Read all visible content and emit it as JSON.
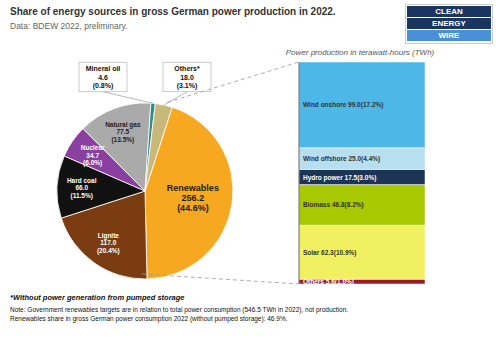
{
  "chart_data": [
    {
      "type": "pie",
      "title": "Share of energy sources in gross German power production in 2022.",
      "subtitle": "Data: BDEW 2022, preliminary.",
      "categories": [
        "Renewables",
        "Lignite",
        "Hard coal",
        "Nuclear",
        "Natural gas",
        "Mineral oil",
        "Others*"
      ],
      "values": [
        256.2,
        117.0,
        66.0,
        34.7,
        77.5,
        4.6,
        18.0
      ],
      "value_labels": [
        "256.2\n(44.6%)",
        "117.0\n(20.4%)",
        "66.0\n(11.5%)",
        "34.7\n(6.0%)",
        "77.5\n(13.5%)",
        "4.6\n(0.8%)",
        "18.0\n(3.1%)"
      ],
      "colors": [
        "#f5a820",
        "#7a3c10",
        "#111111",
        "#8b3fa0",
        "#aaaaaa",
        "#2e8b8b",
        "#c8b97a"
      ],
      "data_labels": true,
      "annotations": [
        "*Without power generation from pumped storage",
        "Note: Government renewables targets are in relation to total power consumption (546.5 TWh in 2022), not production.\nRenewables share in gross German power consumption 2022 (without pumped storage): 46.9%.",
        "CLEAN\nENERGY\nWIRE"
      ]
    },
    {
      "type": "bar",
      "stacked": true,
      "title": "Power production in terawatt-hours (TWh)",
      "categories": [
        null
      ],
      "series": [
        {
          "name": "Wind onshore",
          "color": "#4db8e8",
          "values": [
            99.0
          ],
          "value_labels": [
            "99.0(17.2%)"
          ]
        },
        {
          "name": "Wind offshore",
          "color": "#b8dff0",
          "values": [
            25.0
          ],
          "value_labels": [
            "25.0(4.4%)"
          ]
        },
        {
          "name": "Hydro power",
          "color": "#1c3557",
          "values": [
            17.5
          ],
          "value_labels": [
            "17.5(3.0%)"
          ]
        },
        {
          "name": "Biomass",
          "color": "#a8c800",
          "values": [
            46.8
          ],
          "value_labels": [
            "46.8(8.2%)"
          ]
        },
        {
          "name": "Solar",
          "color": "#f0f060",
          "values": [
            62.3
          ],
          "value_labels": [
            "62.3(10.9%)"
          ]
        },
        {
          "name": "Others",
          "color": "#9b1b2a",
          "values": [
            5.6
          ],
          "value_labels": [
            "5.6(1.0%)"
          ]
        }
      ],
      "ylim": [
        0,
        256.2
      ],
      "data_labels": true,
      "tick_labels": false
    }
  ]
}
